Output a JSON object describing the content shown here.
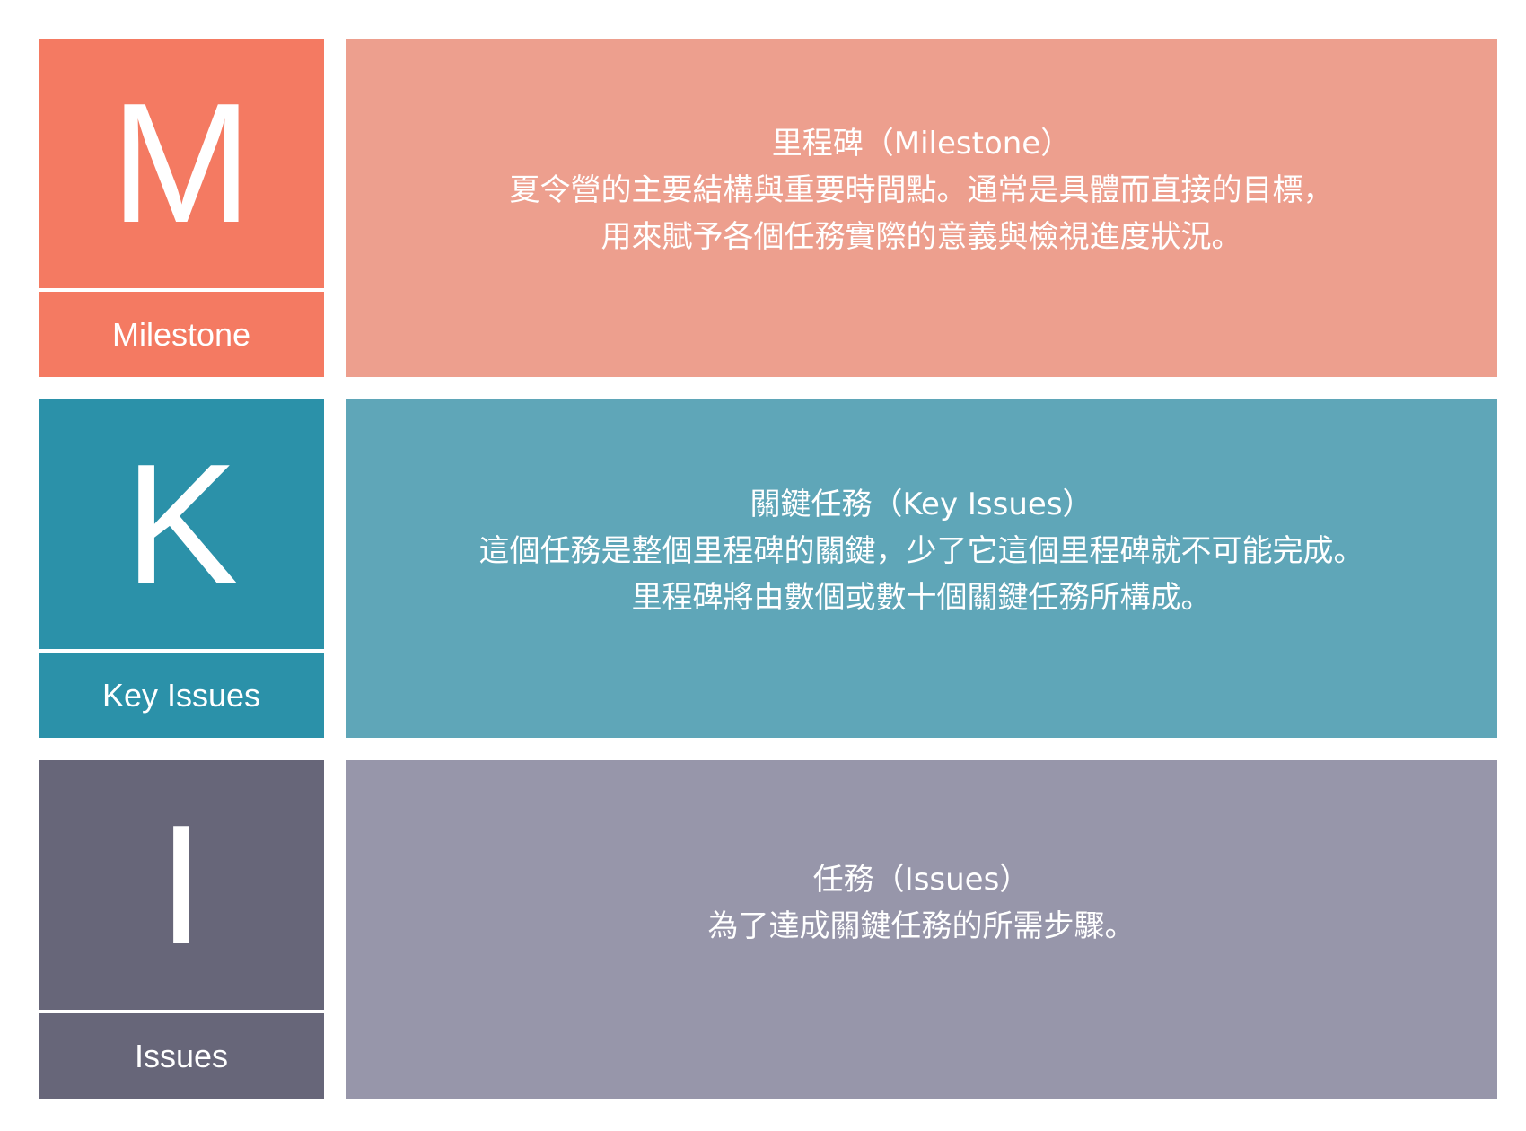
{
  "colors": {
    "milestone_primary": "#f47a62",
    "milestone_secondary": "#ed9f8e",
    "key_issues_primary": "#2b91a9",
    "key_issues_secondary": "#5fa6b8",
    "issues_primary": "#676679",
    "issues_secondary": "#9796aa"
  },
  "rows": {
    "milestone": {
      "letter": "M",
      "label": "Milestone",
      "lines": [
        "里程碑（Milestone）",
        "夏令營的主要結構與重要時間點。通常是具體而直接的目標，",
        "用來賦予各個任務實際的意義與檢視進度狀況。"
      ]
    },
    "key_issues": {
      "letter": "K",
      "label": "Key Issues",
      "lines": [
        "關鍵任務（Key Issues）",
        "這個任務是整個里程碑的關鍵，少了它這個里程碑就不可能完成。",
        "里程碑將由數個或數十個關鍵任務所構成。"
      ]
    },
    "issues": {
      "letter": "I",
      "label": "Issues",
      "lines": [
        "任務（Issues）",
        "為了達成關鍵任務的所需步驟。"
      ]
    }
  }
}
